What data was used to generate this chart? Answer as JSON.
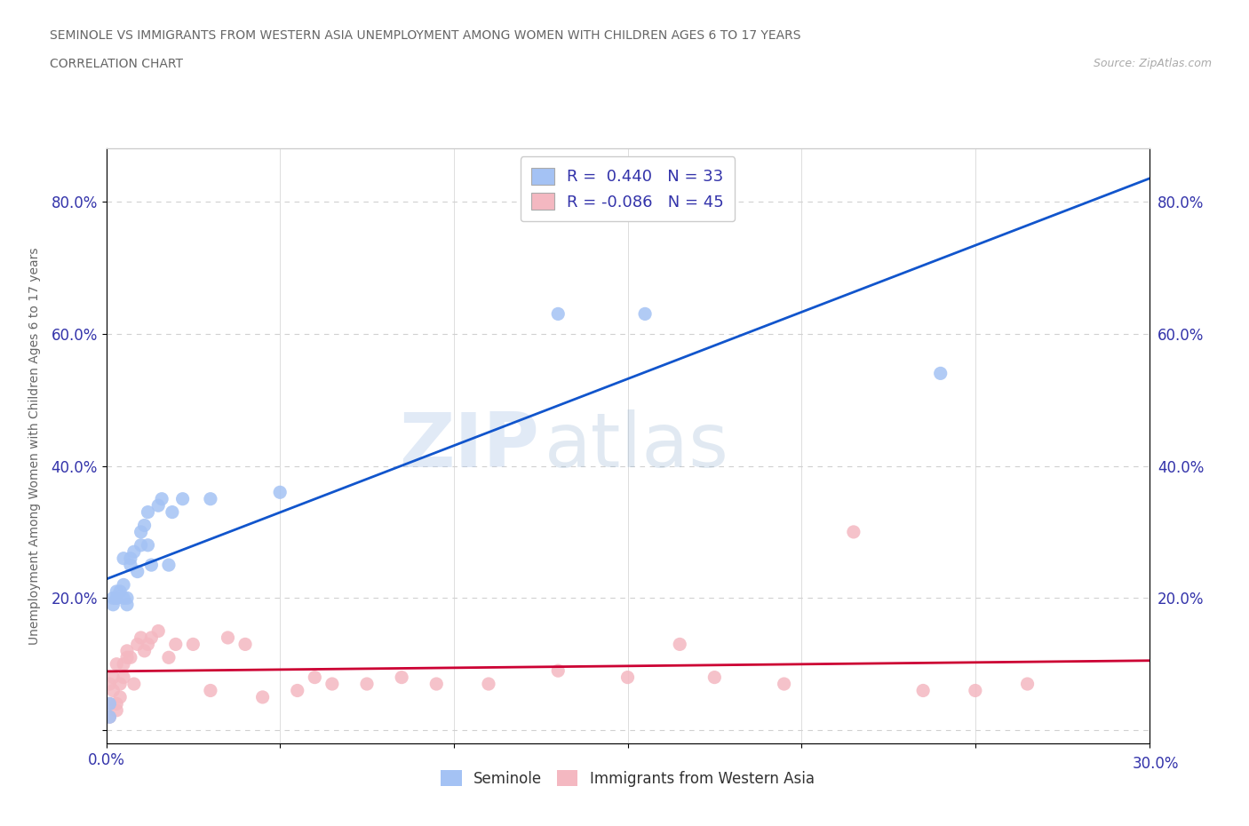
{
  "title": "SEMINOLE VS IMMIGRANTS FROM WESTERN ASIA UNEMPLOYMENT AMONG WOMEN WITH CHILDREN AGES 6 TO 17 YEARS",
  "subtitle": "CORRELATION CHART",
  "source": "Source: ZipAtlas.com",
  "ylabel": "Unemployment Among Women with Children Ages 6 to 17 years",
  "xmin": 0.0,
  "xmax": 0.3,
  "ymin": -0.02,
  "ymax": 0.88,
  "x_ticks": [
    0.0,
    0.05,
    0.1,
    0.15,
    0.2,
    0.25,
    0.3
  ],
  "y_ticks": [
    0.0,
    0.2,
    0.4,
    0.6,
    0.8
  ],
  "seminole_color": "#a4c2f4",
  "immigrants_color": "#f4b8c1",
  "seminole_line_color": "#1155cc",
  "immigrants_line_color": "#cc0033",
  "legend_seminole_label": "R =  0.440   N = 33",
  "legend_immigrants_label": "R = -0.086   N = 45",
  "bottom_seminole_label": "Seminole",
  "bottom_immigrants_label": "Immigrants from Western Asia",
  "seminole_x": [
    0.001,
    0.001,
    0.002,
    0.002,
    0.003,
    0.003,
    0.003,
    0.004,
    0.005,
    0.005,
    0.005,
    0.006,
    0.006,
    0.007,
    0.007,
    0.008,
    0.009,
    0.01,
    0.01,
    0.011,
    0.012,
    0.012,
    0.013,
    0.015,
    0.016,
    0.018,
    0.019,
    0.022,
    0.03,
    0.05,
    0.13,
    0.155,
    0.24
  ],
  "seminole_y": [
    0.02,
    0.04,
    0.19,
    0.2,
    0.21,
    0.2,
    0.2,
    0.21,
    0.22,
    0.2,
    0.26,
    0.19,
    0.2,
    0.26,
    0.25,
    0.27,
    0.24,
    0.3,
    0.28,
    0.31,
    0.28,
    0.33,
    0.25,
    0.34,
    0.35,
    0.25,
    0.33,
    0.35,
    0.35,
    0.36,
    0.63,
    0.63,
    0.54
  ],
  "immigrants_x": [
    0.001,
    0.001,
    0.001,
    0.002,
    0.002,
    0.003,
    0.003,
    0.004,
    0.004,
    0.005,
    0.005,
    0.006,
    0.006,
    0.007,
    0.008,
    0.009,
    0.01,
    0.011,
    0.013,
    0.015,
    0.018,
    0.02,
    0.025,
    0.03,
    0.035,
    0.04,
    0.045,
    0.055,
    0.065,
    0.075,
    0.085,
    0.095,
    0.11,
    0.13,
    0.15,
    0.165,
    0.175,
    0.195,
    0.215,
    0.235,
    0.25,
    0.265,
    0.003,
    0.012,
    0.06
  ],
  "immigrants_y": [
    0.04,
    0.02,
    0.07,
    0.08,
    0.06,
    0.04,
    0.03,
    0.05,
    0.07,
    0.1,
    0.08,
    0.12,
    0.11,
    0.11,
    0.07,
    0.13,
    0.14,
    0.12,
    0.14,
    0.15,
    0.11,
    0.13,
    0.13,
    0.06,
    0.14,
    0.13,
    0.05,
    0.06,
    0.07,
    0.07,
    0.08,
    0.07,
    0.07,
    0.09,
    0.08,
    0.13,
    0.08,
    0.07,
    0.3,
    0.06,
    0.06,
    0.07,
    0.1,
    0.13,
    0.08
  ],
  "watermark_zip": "ZIP",
  "watermark_atlas": "atlas",
  "background_color": "#ffffff",
  "grid_color": "#d0d0d0",
  "title_color": "#666666",
  "tick_color": "#3333aa",
  "ylabel_color": "#666666"
}
